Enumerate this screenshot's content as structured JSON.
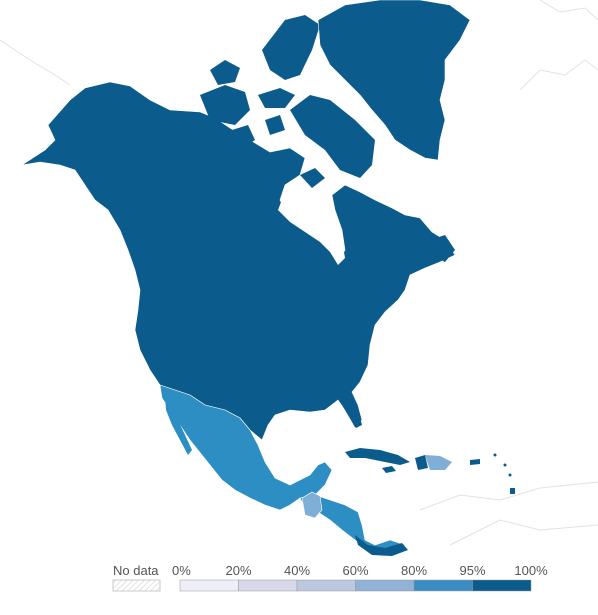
{
  "colors": {
    "level_100": "#0b5b8c",
    "level_95": "#2d8ec3",
    "level_80": "#7faed6",
    "level_60": "#a8c2e0",
    "level_40": "#c4cfe6",
    "level_20": "#dfe3f0",
    "no_data_stroke": "#c8c8c8",
    "border": "#ffffff",
    "background_land_stroke": "#e2e2e2"
  },
  "legend": {
    "no_data_label": "No data",
    "ticks": [
      "0%",
      "20%",
      "40%",
      "60%",
      "80%",
      "95%",
      "100%"
    ],
    "bins": [
      {
        "from": 0,
        "to": 20,
        "color": "#eeeef6"
      },
      {
        "from": 20,
        "to": 40,
        "color": "#d7d9ea"
      },
      {
        "from": 40,
        "to": 60,
        "color": "#bcc8e0"
      },
      {
        "from": 60,
        "to": 80,
        "color": "#8fb2d6"
      },
      {
        "from": 80,
        "to": 95,
        "color": "#3a8dc2"
      },
      {
        "from": 95,
        "to": 100,
        "color": "#0b5b8c"
      }
    ]
  },
  "regions": [
    {
      "name": "canada-usa",
      "level": "100"
    },
    {
      "name": "greenland",
      "level": "100"
    },
    {
      "name": "mexico",
      "level": "95"
    },
    {
      "name": "cuba",
      "level": "100"
    },
    {
      "name": "hispaniola-east",
      "level": "80"
    },
    {
      "name": "central-america",
      "level": "95"
    },
    {
      "name": "guatemala",
      "level": "80"
    }
  ]
}
